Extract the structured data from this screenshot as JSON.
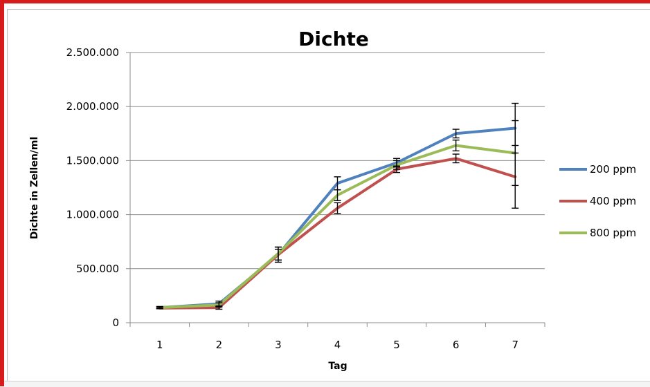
{
  "chart_data": {
    "type": "line",
    "title": "Dichte",
    "xlabel": "Tag",
    "ylabel": "Dichte in Zellen/ml",
    "categories": [
      "1",
      "2",
      "3",
      "4",
      "5",
      "6",
      "7"
    ],
    "ylim": [
      0,
      2500000
    ],
    "yticks": [
      {
        "value": 0,
        "label": "0"
      },
      {
        "value": 500000,
        "label": "500.000"
      },
      {
        "value": 1000000,
        "label": "1.000.000"
      },
      {
        "value": 1500000,
        "label": "1.500.000"
      },
      {
        "value": 2000000,
        "label": "2.000.000"
      },
      {
        "value": 2500000,
        "label": "2.500.000"
      }
    ],
    "grid": "horizontal",
    "legend_position": "right",
    "series": [
      {
        "name": "200 ppm",
        "color": "#4f81bd",
        "values": [
          140000,
          175000,
          630000,
          1290000,
          1480000,
          1750000,
          1800000
        ],
        "errors": [
          10000,
          25000,
          50000,
          60000,
          40000,
          40000,
          230000
        ]
      },
      {
        "name": "400 ppm",
        "color": "#c0504d",
        "values": [
          135000,
          140000,
          630000,
          1060000,
          1420000,
          1520000,
          1350000
        ],
        "errors": [
          5000,
          15000,
          70000,
          50000,
          30000,
          40000,
          290000
        ]
      },
      {
        "name": "800 ppm",
        "color": "#9bbb59",
        "values": [
          140000,
          165000,
          640000,
          1180000,
          1460000,
          1640000,
          1570000
        ],
        "errors": [
          10000,
          20000,
          60000,
          50000,
          40000,
          50000,
          300000
        ]
      }
    ]
  }
}
